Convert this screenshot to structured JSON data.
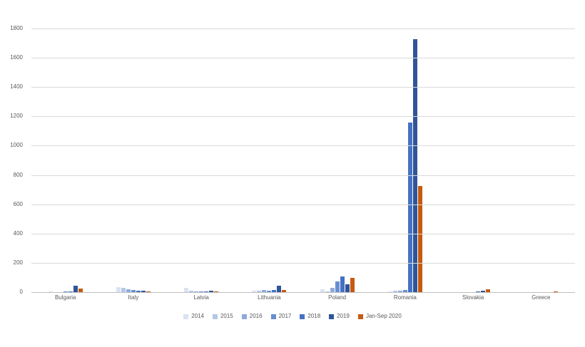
{
  "chart_data": {
    "type": "bar",
    "title": "",
    "xlabel": "",
    "ylabel": "",
    "ylim": [
      0,
      1800
    ],
    "ytick_step": 200,
    "yticks": [
      "0",
      "200",
      "400",
      "600",
      "800",
      "1000",
      "1200",
      "1400",
      "1600",
      "1800"
    ],
    "grid": true,
    "legend_position": "bottom",
    "categories": [
      "Bulgaria",
      "Italy",
      "Latvia",
      "Lithuania",
      "Poland",
      "Romania",
      "Slovakia",
      "Greece"
    ],
    "series": [
      {
        "name": "2014",
        "color": "#dae3f3",
        "values": [
          3,
          35,
          30,
          8,
          20,
          5,
          2,
          1
        ]
      },
      {
        "name": "2015",
        "color": "#b4c7e7",
        "values": [
          2,
          28,
          8,
          12,
          6,
          8,
          1,
          0
        ]
      },
      {
        "name": "2016",
        "color": "#8faadc",
        "values": [
          2,
          20,
          5,
          15,
          28,
          10,
          1,
          0
        ]
      },
      {
        "name": "2017",
        "color": "#698ed0",
        "values": [
          3,
          15,
          5,
          10,
          75,
          15,
          2,
          1
        ]
      },
      {
        "name": "2018",
        "color": "#4472c4",
        "values": [
          6,
          12,
          3,
          15,
          105,
          1160,
          3,
          1
        ]
      },
      {
        "name": "2019",
        "color": "#2f5597",
        "values": [
          42,
          10,
          12,
          46,
          55,
          1725,
          10,
          2
        ]
      },
      {
        "name": "Jan-Sep 2020",
        "color": "#c55a11",
        "values": [
          22,
          4,
          5,
          16,
          95,
          725,
          18,
          5
        ]
      }
    ],
    "colors": {
      "gridline": "#d9d9d9",
      "axis_line": "#bfbfbf",
      "tick_text": "#595959",
      "background": "#ffffff"
    }
  }
}
